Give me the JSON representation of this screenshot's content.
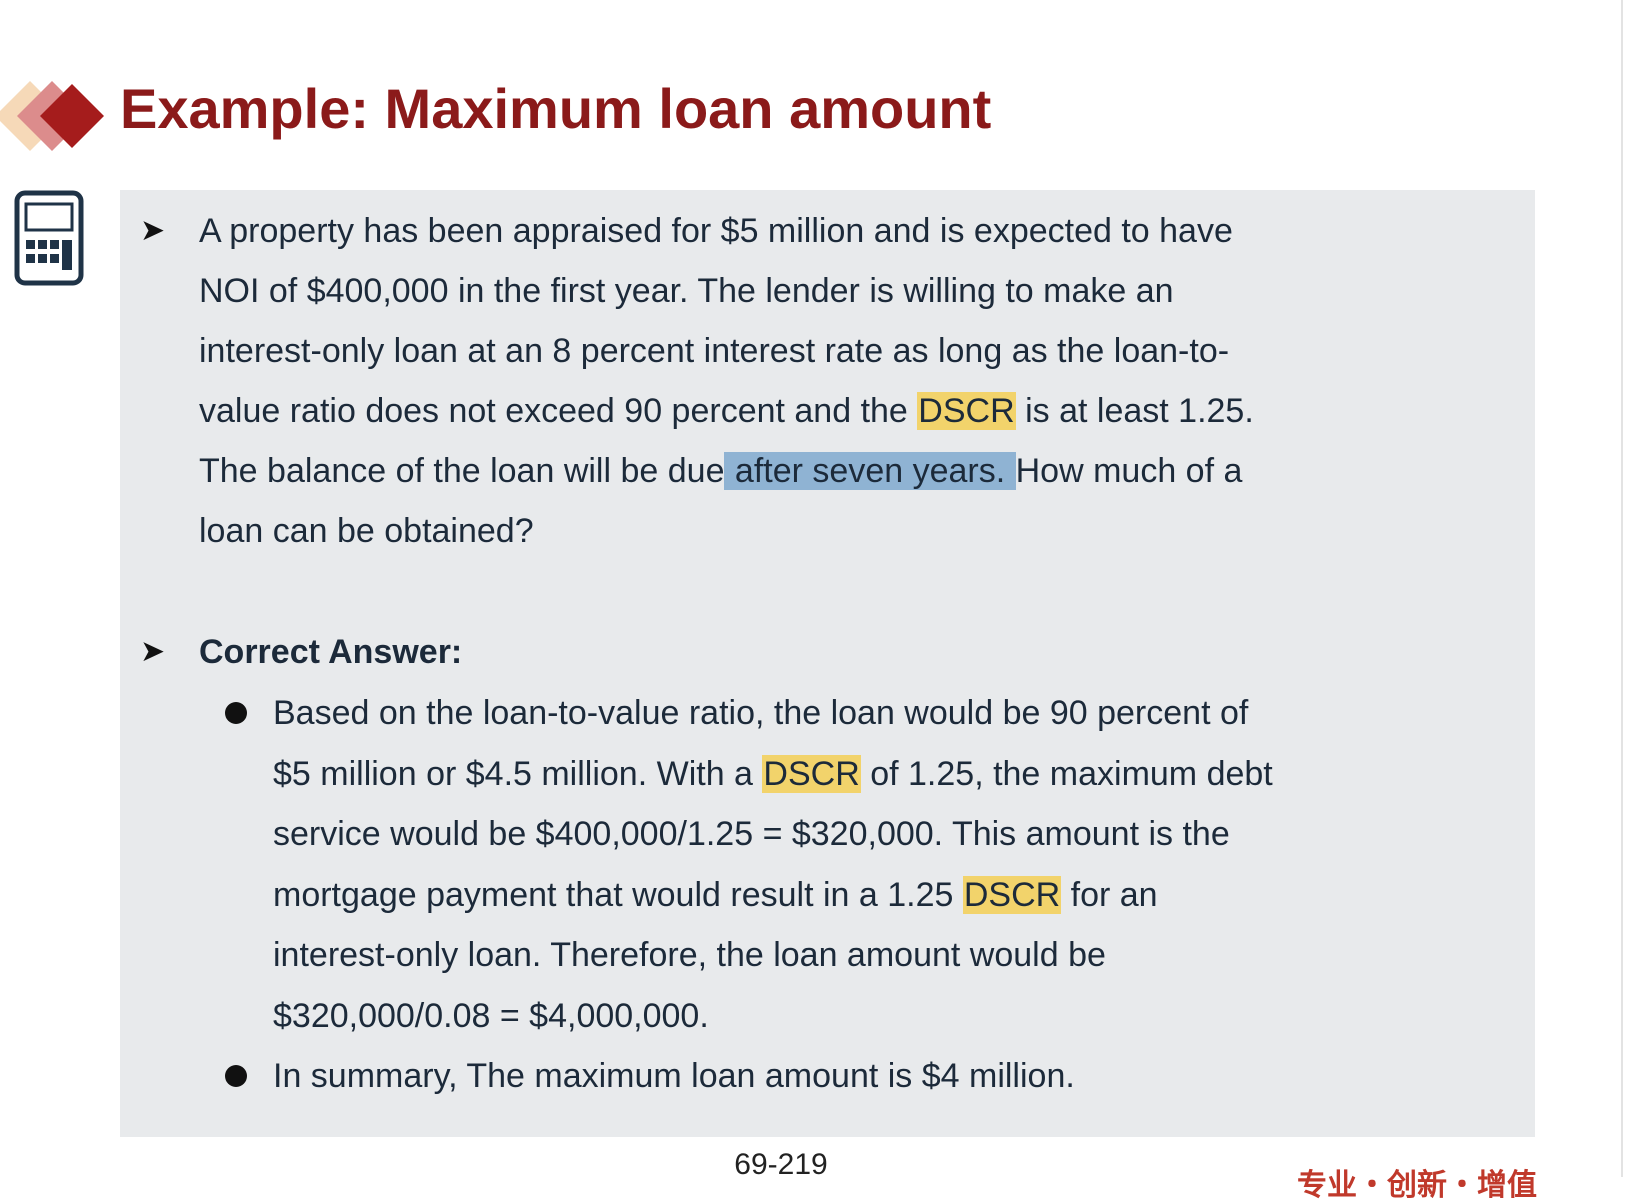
{
  "title": "Example: Maximum loan amount",
  "question": {
    "lines": [
      [
        {
          "text": "A property has been appraised for $5 million and is expected to have"
        }
      ],
      [
        {
          "text": "NOI of $400,000 in the first year. The lender is willing to make an"
        }
      ],
      [
        {
          "text": "interest-only loan at an 8 percent interest rate as long as the loan-to-"
        }
      ],
      [
        {
          "text": "value ratio does not exceed 90 percent and the "
        },
        {
          "text": "DSCR",
          "highlight": "#f2d36b"
        },
        {
          "text": " is at least 1.25."
        }
      ],
      [
        {
          "text": "The balance of the loan will be due"
        },
        {
          "text": " after seven years. ",
          "highlight": "#8fb3d3"
        },
        {
          "text": "How much of a"
        }
      ],
      [
        {
          "text": "loan can be obtained?"
        }
      ]
    ]
  },
  "answer": {
    "heading": "Correct Answer:",
    "bullets": [
      [
        [
          {
            "text": "Based on the loan-to-value ratio, the loan would be 90 percent of"
          }
        ],
        [
          {
            "text": "$5 million or $4.5 million. With a "
          },
          {
            "text": "DSCR",
            "highlight": "#f2d36b"
          },
          {
            "text": " of 1.25, the maximum debt"
          }
        ],
        [
          {
            "text": "service would be $400,000/1.25 = $320,000. This amount is the"
          }
        ],
        [
          {
            "text": "mortgage payment that would result in a 1.25 "
          },
          {
            "text": "DSCR",
            "highlight": "#f2d36b"
          },
          {
            "text": " for an"
          }
        ],
        [
          {
            "text": "interest-only loan. Therefore, the loan amount would be"
          }
        ],
        [
          {
            "text": "$320,000/0.08 = $4,000,000."
          }
        ]
      ],
      [
        [
          {
            "text": "In summary, The maximum loan amount is $4 million."
          }
        ]
      ]
    ]
  },
  "page_number": "69-219",
  "footer": "专业・创新・增值"
}
